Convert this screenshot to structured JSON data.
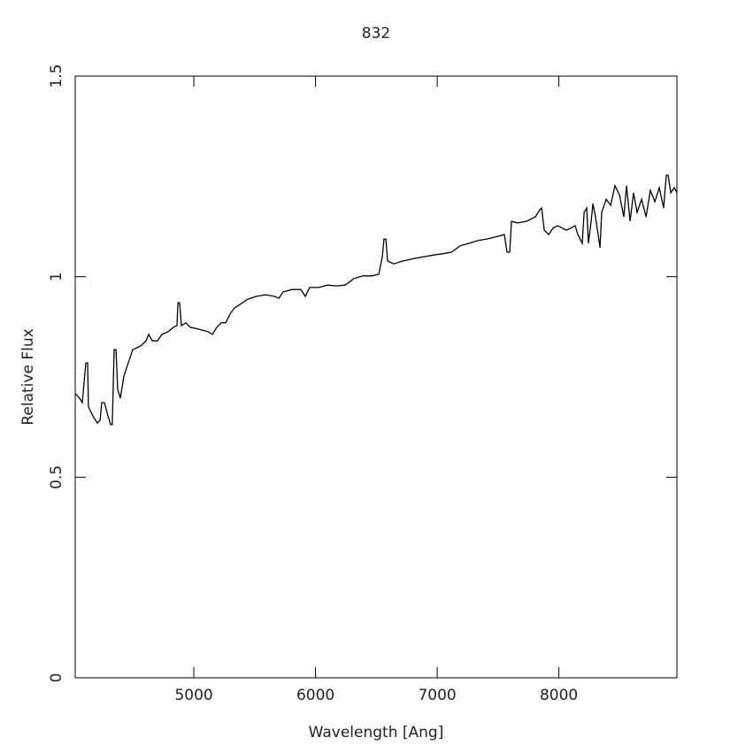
{
  "chart_data": {
    "type": "line",
    "title": "832",
    "xlabel": "Wavelength [Ang]",
    "ylabel": "Relative Flux",
    "xlim": [
      4025,
      8970
    ],
    "ylim": [
      0,
      1.5
    ],
    "xticks": [
      5000,
      6000,
      7000,
      8000
    ],
    "yticks": [
      0,
      0.5,
      1,
      1.5
    ],
    "color": "#000000",
    "x": [
      4025,
      4061,
      4083,
      4112,
      4127,
      4134,
      4170,
      4207,
      4229,
      4243,
      4265,
      4294,
      4316,
      4330,
      4345,
      4360,
      4374,
      4396,
      4425,
      4461,
      4498,
      4534,
      4570,
      4607,
      4629,
      4658,
      4701,
      4738,
      4789,
      4832,
      4861,
      4869,
      4883,
      4898,
      4934,
      4970,
      5043,
      5116,
      5152,
      5189,
      5225,
      5261,
      5298,
      5334,
      5370,
      5443,
      5516,
      5589,
      5661,
      5698,
      5734,
      5807,
      5880,
      5916,
      5952,
      6025,
      6098,
      6170,
      6243,
      6316,
      6389,
      6461,
      6520,
      6549,
      6563,
      6578,
      6592,
      6643,
      6716,
      6825,
      6898,
      6970,
      7043,
      7116,
      7189,
      7261,
      7334,
      7407,
      7480,
      7552,
      7574,
      7596,
      7610,
      7661,
      7734,
      7807,
      7843,
      7858,
      7880,
      7916,
      7952,
      7989,
      8061,
      8098,
      8134,
      8156,
      8192,
      8207,
      8229,
      8243,
      8265,
      8280,
      8301,
      8323,
      8338,
      8352,
      8389,
      8425,
      8461,
      8498,
      8534,
      8556,
      8585,
      8614,
      8643,
      8680,
      8716,
      8752,
      8789,
      8825,
      8861,
      8883,
      8898,
      8920,
      8949,
      8970
    ],
    "values": [
      0.708,
      0.697,
      0.686,
      0.785,
      0.785,
      0.675,
      0.653,
      0.635,
      0.642,
      0.686,
      0.686,
      0.653,
      0.631,
      0.631,
      0.818,
      0.818,
      0.719,
      0.697,
      0.752,
      0.785,
      0.818,
      0.823,
      0.829,
      0.84,
      0.856,
      0.84,
      0.84,
      0.856,
      0.863,
      0.874,
      0.878,
      0.935,
      0.935,
      0.878,
      0.885,
      0.874,
      0.869,
      0.863,
      0.856,
      0.874,
      0.885,
      0.885,
      0.907,
      0.922,
      0.929,
      0.944,
      0.951,
      0.955,
      0.951,
      0.946,
      0.962,
      0.968,
      0.968,
      0.951,
      0.973,
      0.973,
      0.979,
      0.977,
      0.979,
      0.995,
      1.002,
      1.002,
      1.006,
      1.05,
      1.094,
      1.094,
      1.039,
      1.032,
      1.039,
      1.046,
      1.05,
      1.054,
      1.057,
      1.061,
      1.077,
      1.083,
      1.09,
      1.094,
      1.099,
      1.105,
      1.061,
      1.061,
      1.138,
      1.134,
      1.138,
      1.149,
      1.167,
      1.171,
      1.116,
      1.105,
      1.121,
      1.127,
      1.116,
      1.121,
      1.127,
      1.105,
      1.083,
      1.16,
      1.171,
      1.083,
      1.138,
      1.182,
      1.149,
      1.105,
      1.072,
      1.16,
      1.193,
      1.178,
      1.227,
      1.204,
      1.149,
      1.227,
      1.138,
      1.209,
      1.16,
      1.193,
      1.149,
      1.215,
      1.187,
      1.222,
      1.171,
      1.253,
      1.253,
      1.209,
      1.222,
      1.209
    ]
  }
}
